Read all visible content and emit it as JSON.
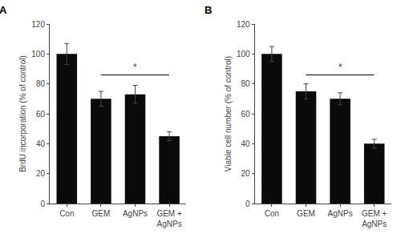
{
  "chart_data": [
    {
      "type": "bar",
      "title": "A",
      "categories": [
        "Con",
        "GEM",
        "AgNPs",
        "GEM +\nAgNPs"
      ],
      "values": [
        100,
        70,
        73,
        45
      ],
      "errors": [
        7,
        5,
        6,
        3
      ],
      "ylabel": "BrdU incorporation (% of control)",
      "ylim": [
        0,
        120
      ],
      "yticks": [
        0,
        20,
        40,
        60,
        80,
        100,
        120
      ],
      "color": "#0a0a0a",
      "grid": false,
      "significance": {
        "from": "GEM",
        "to": "GEM +\nAgNPs",
        "at": "AgNPs",
        "y": 86,
        "label": "*"
      }
    },
    {
      "type": "bar",
      "title": "B",
      "categories": [
        "Con",
        "GEM",
        "AgNPs",
        "GEM +\nAgNPs"
      ],
      "values": [
        100,
        75,
        70,
        40
      ],
      "errors": [
        5,
        5,
        4,
        3
      ],
      "ylabel": "Viable cell number (% of control)",
      "ylim": [
        0,
        120
      ],
      "yticks": [
        0,
        20,
        40,
        60,
        80,
        100,
        120
      ],
      "color": "#0a0a0a",
      "grid": false,
      "significance": {
        "from": "GEM",
        "to": "GEM +\nAgNPs",
        "at": "AgNPs",
        "y": 86,
        "label": "*"
      }
    }
  ]
}
